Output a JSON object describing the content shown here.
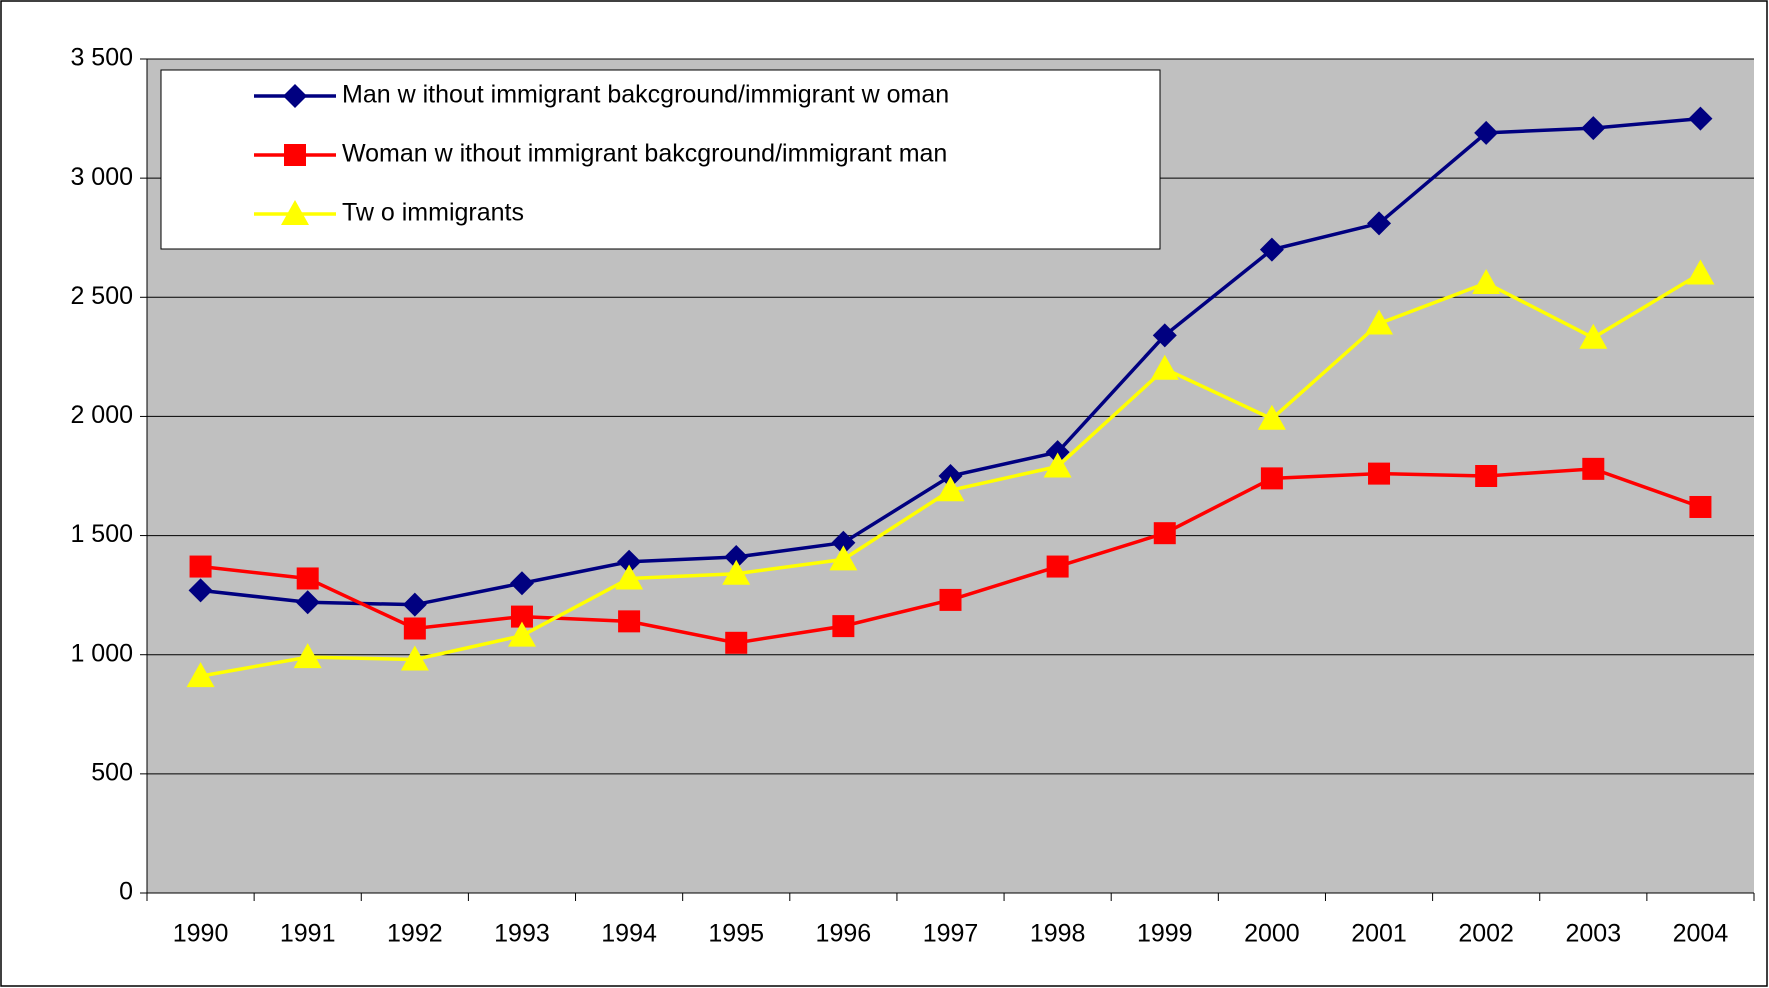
{
  "chart_data": {
    "type": "line",
    "categories": [
      "1990",
      "1991",
      "1992",
      "1993",
      "1994",
      "1995",
      "1996",
      "1997",
      "1998",
      "1999",
      "2000",
      "2001",
      "2002",
      "2003",
      "2004"
    ],
    "series": [
      {
        "name": "Man w ithout immigrant bakcground/immigrant w oman",
        "color": "#000080",
        "marker": "diamond",
        "values": [
          1270,
          1220,
          1210,
          1300,
          1390,
          1410,
          1470,
          1750,
          1850,
          2340,
          2700,
          2810,
          3190,
          3210,
          3250
        ]
      },
      {
        "name": "Woman w ithout immigrant bakcground/immigrant man",
        "color": "#ff0000",
        "marker": "square",
        "values": [
          1370,
          1320,
          1110,
          1160,
          1140,
          1050,
          1120,
          1230,
          1370,
          1510,
          1740,
          1760,
          1750,
          1780,
          1620
        ]
      },
      {
        "name": "Tw o immigrants",
        "color": "#ffff00",
        "marker": "triangle",
        "values": [
          910,
          990,
          980,
          1080,
          1320,
          1340,
          1400,
          1690,
          1790,
          2200,
          1990,
          2390,
          2560,
          2330,
          2600
        ]
      }
    ],
    "ylim": [
      0,
      3500
    ],
    "yticks": [
      0,
      500,
      {
        "value": 1000,
        "label": "1 000"
      },
      {
        "value": 1500,
        "label": "1 500"
      },
      {
        "value": 2000,
        "label": "2 000"
      },
      {
        "value": 2500,
        "label": "2 500"
      },
      {
        "value": 3000,
        "label": "3 000"
      },
      {
        "value": 3500,
        "label": "3 500"
      }
    ],
    "grid": true,
    "plot_background": "#c0c0c0",
    "legend": "upper left"
  }
}
